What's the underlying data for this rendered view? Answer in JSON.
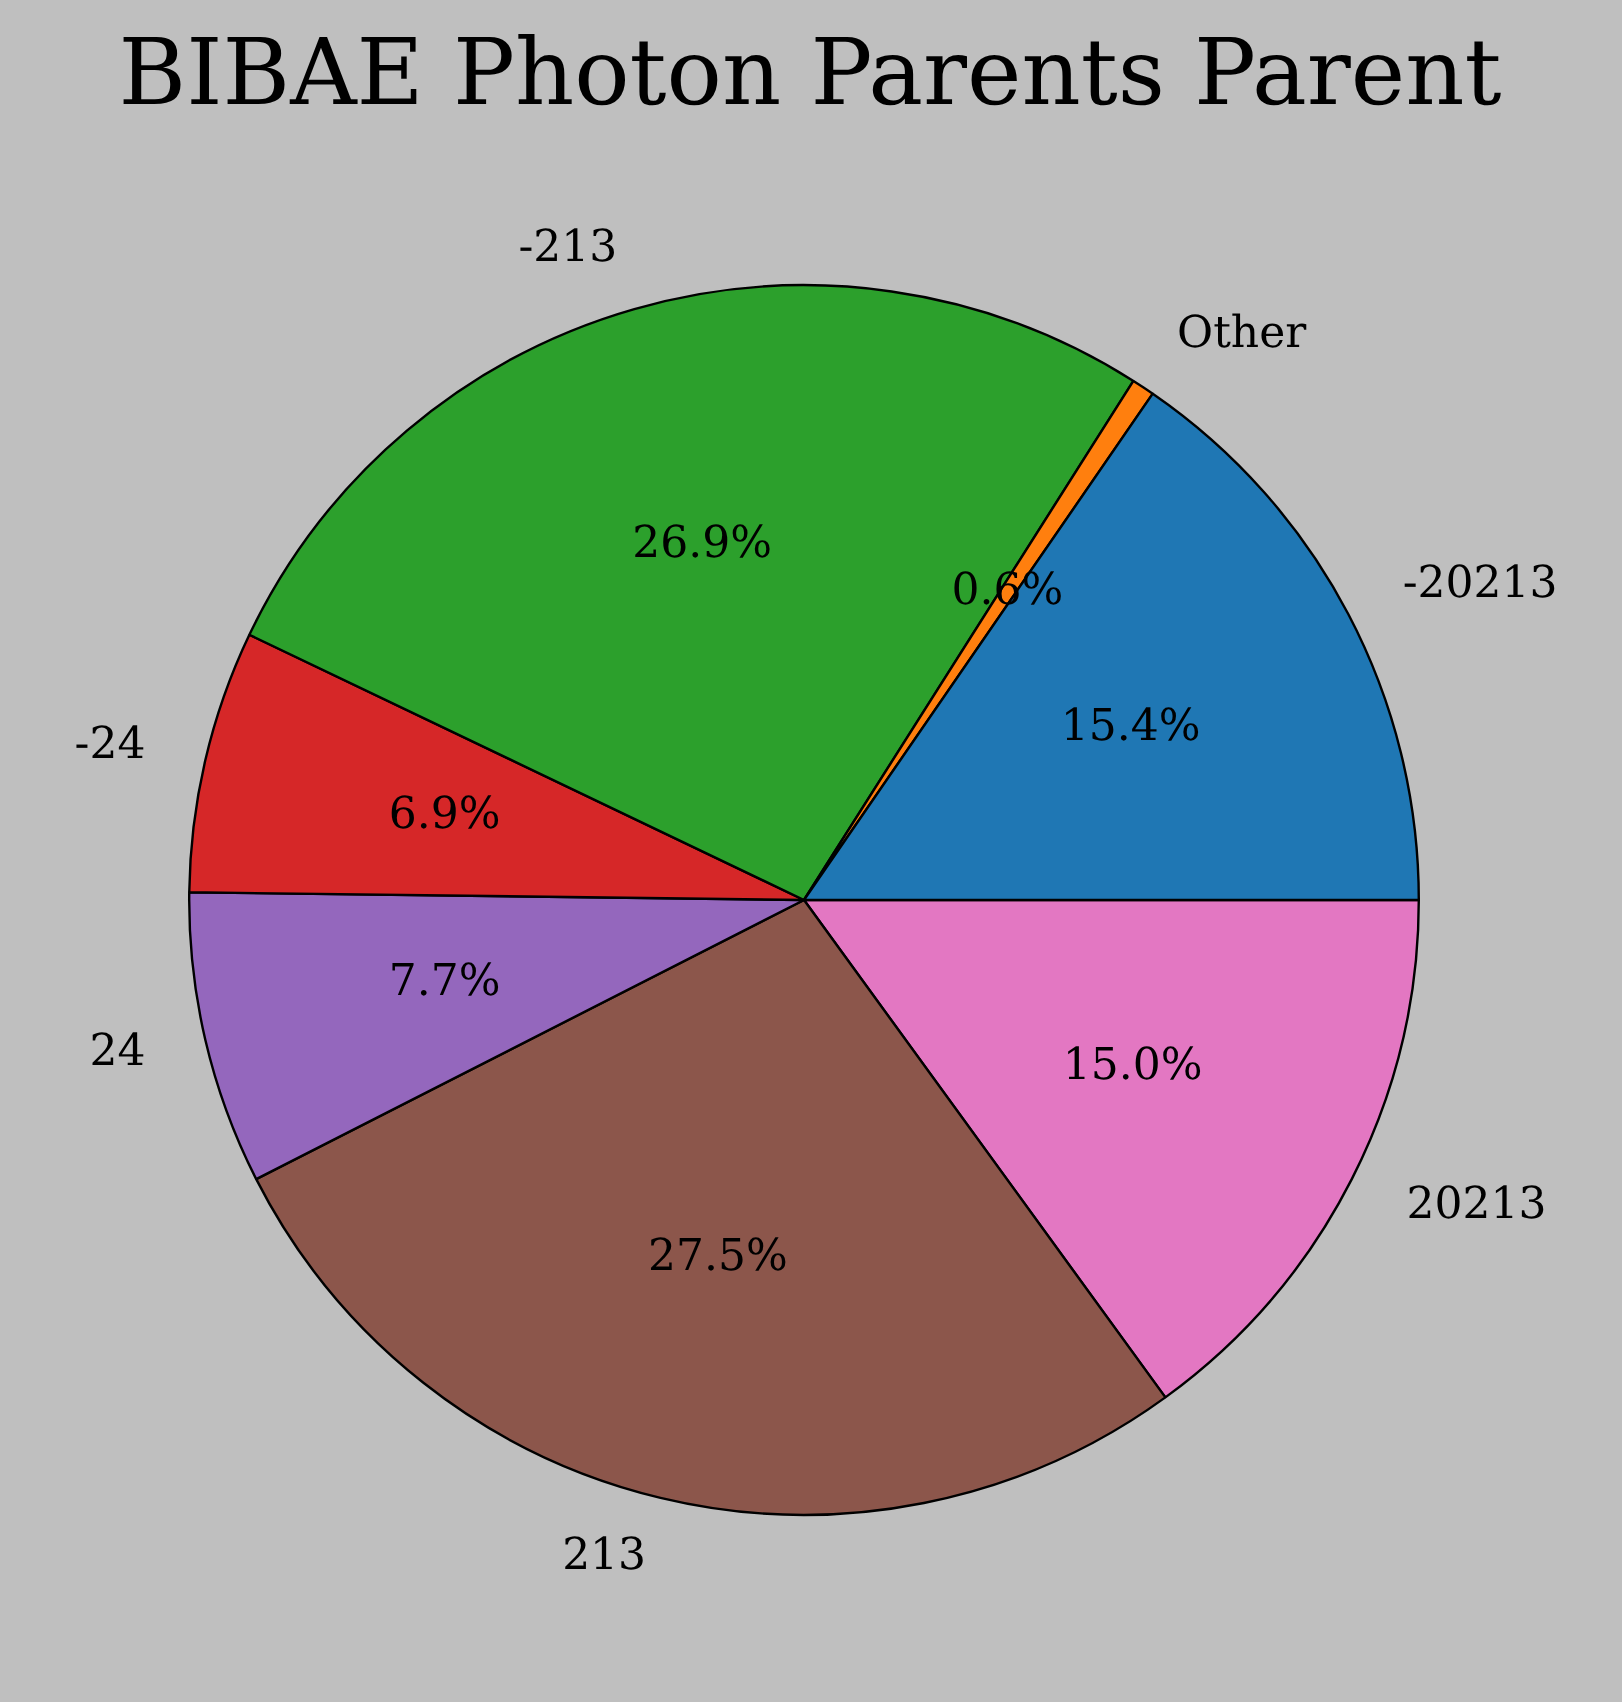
{
  "chart_data": {
    "type": "pie",
    "title": "BIBAE Photon Parents Parent",
    "categories": [
      "-20213",
      "Other",
      "-213",
      "-24",
      "24",
      "213",
      "20213"
    ],
    "values": [
      15.4,
      0.6,
      26.9,
      6.9,
      7.7,
      27.5,
      15.0
    ],
    "value_labels": [
      "15.4%",
      "0.6%",
      "26.9%",
      "6.9%",
      "7.7%",
      "27.5%",
      "15.0%"
    ],
    "colors": [
      "#1f77b4",
      "#ff7f0e",
      "#2ca02c",
      "#d62728",
      "#9467bd",
      "#8c564b",
      "#e377c2"
    ],
    "legend": false
  }
}
